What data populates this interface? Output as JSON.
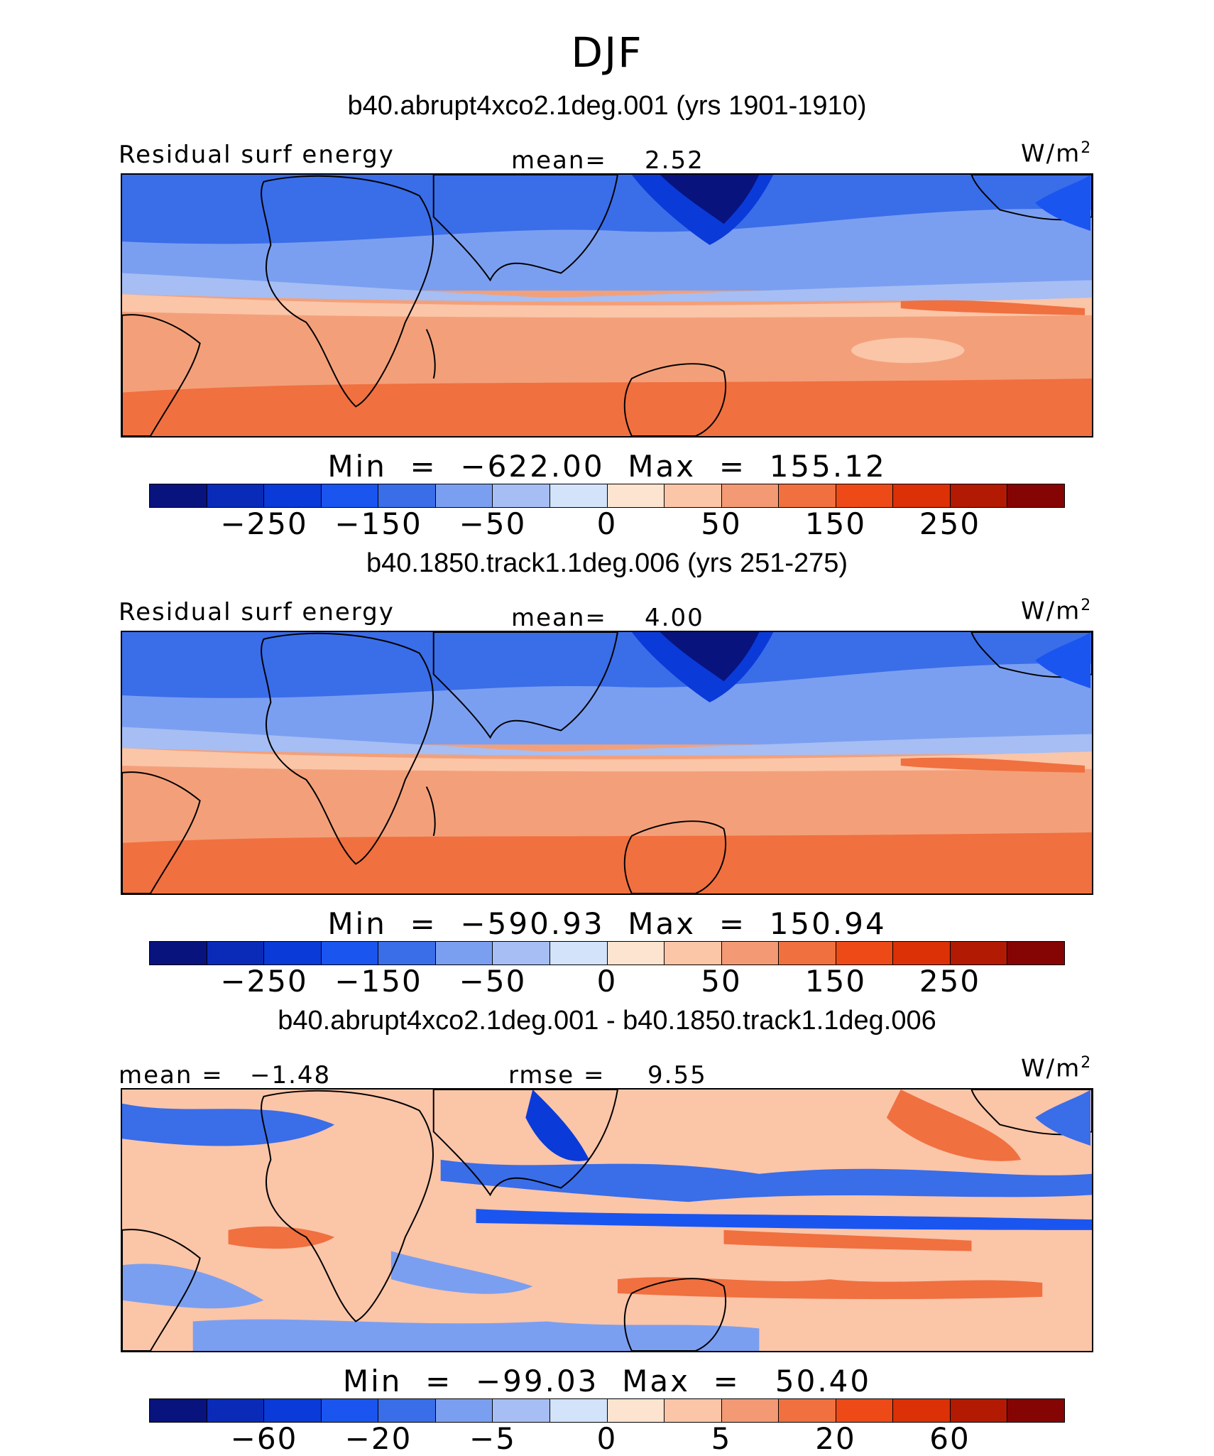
{
  "season": "DJF",
  "units": "W/m",
  "units_sup": "2",
  "palette": [
    "#08137e",
    "#0a2bb8",
    "#0a3ad8",
    "#1a55f0",
    "#3a6de8",
    "#7b9ff0",
    "#a6bef3",
    "#d2e3fa",
    "#fde4d0",
    "#fbc5a8",
    "#f39a74",
    "#f07040",
    "#ee4a18",
    "#dc3006",
    "#b21a04",
    "#850505"
  ],
  "panels": [
    {
      "title": "b40.abrupt4xco2.1deg.001 (yrs 1901-1910)",
      "left_label": "Residual surf energy",
      "center_label": "mean=",
      "center_value": "2.52",
      "minmax_text": "Min  =  −622.00  Max  =  155.12",
      "ticks": [
        "−250",
        "−150",
        "−50",
        "0",
        "50",
        "150",
        "250"
      ]
    },
    {
      "title": "b40.1850.track1.1deg.006 (yrs 251-275)",
      "left_label": "Residual surf energy",
      "center_label": "mean=",
      "center_value": "4.00",
      "minmax_text": "Min  =  −590.93  Max  =  150.94",
      "ticks": [
        "−250",
        "−150",
        "−50",
        "0",
        "50",
        "150",
        "250"
      ]
    },
    {
      "title": "b40.abrupt4xco2.1deg.001 - b40.1850.track1.1deg.006",
      "left_label": "mean =",
      "left_value": "−1.48",
      "center_label": "rmse =",
      "center_value": "9.55",
      "minmax_text": "Min  =  −99.03  Max  =   50.40",
      "ticks": [
        "−60",
        "−20",
        "−5",
        "0",
        "5",
        "20",
        "60"
      ]
    }
  ]
}
